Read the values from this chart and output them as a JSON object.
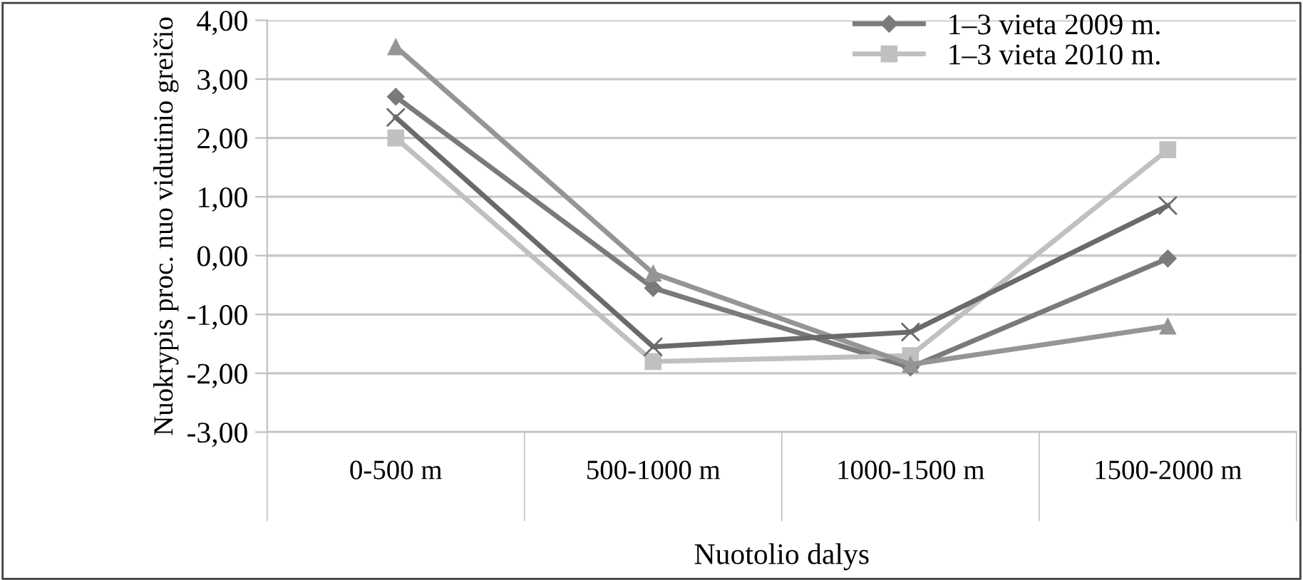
{
  "chart_data": {
    "type": "line",
    "xlabel": "Nuotolio dalys",
    "ylabel": "Nuokrypis proc. nuo vidutinio greičio",
    "categories": [
      "0-500 m",
      "500-1000 m",
      "1000-1500 m",
      "1500-2000 m"
    ],
    "series": [
      {
        "name": "1–3 vieta 2009 m.",
        "color": "#7a7a7a",
        "marker": "diamond",
        "values": [
          2.7,
          -0.55,
          -1.9,
          -0.05
        ]
      },
      {
        "name": "1–3 vieta 2010 m.",
        "color": "#c0c0c0",
        "marker": "square",
        "values": [
          2.0,
          -1.8,
          -1.7,
          1.8
        ]
      },
      {
        "color": "#959595",
        "marker": "triangle",
        "values": [
          3.55,
          -0.3,
          -1.85,
          -1.2
        ]
      },
      {
        "color": "#6a6a6a",
        "marker": "cross",
        "values": [
          2.35,
          -1.55,
          -1.3,
          0.85
        ]
      }
    ],
    "ylim": [
      -3,
      4
    ],
    "yticks": [
      {
        "value": -3,
        "label": "-3,00"
      },
      {
        "value": -2,
        "label": "-2,00"
      },
      {
        "value": -1,
        "label": "-1,00"
      },
      {
        "value": 0,
        "label": "0,00"
      },
      {
        "value": 1,
        "label": "1,00"
      },
      {
        "value": 2,
        "label": "2,00"
      },
      {
        "value": 3,
        "label": "3,00"
      },
      {
        "value": 4,
        "label": "4,00"
      }
    ],
    "grid": "y",
    "legend": "top right",
    "line_style": "solid"
  }
}
